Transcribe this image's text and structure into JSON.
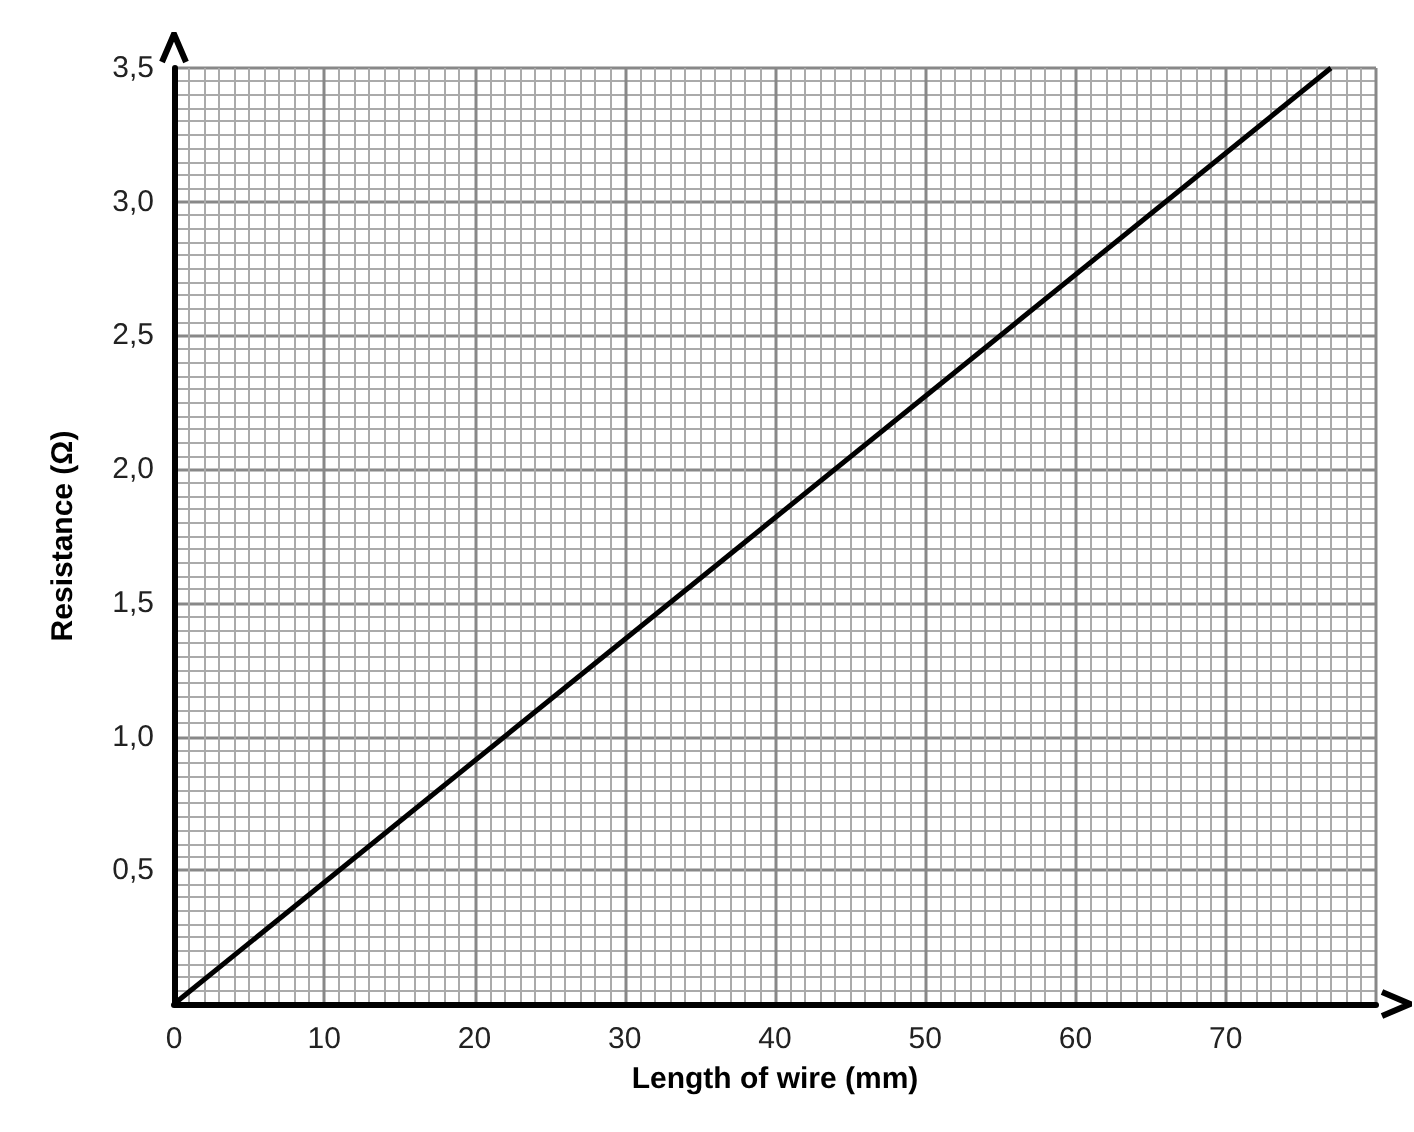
{
  "chart_data": {
    "type": "line",
    "xlabel": "Length of wire (mm)",
    "ylabel": "Resistance (Ω)",
    "series": [
      {
        "color": "#000000",
        "x": [
          0,
          77
        ],
        "values": [
          0,
          3.5
        ]
      }
    ],
    "xlim": [
      0,
      80
    ],
    "xticks": [
      0,
      10,
      20,
      30,
      40,
      50,
      60,
      70
    ],
    "ylim": [
      0,
      3.5
    ],
    "yticks": [
      {
        "value": 0.5,
        "label": "0,5"
      },
      {
        "value": 1,
        "label": "1,0"
      },
      {
        "value": 1.5,
        "label": "1,5"
      },
      {
        "value": 2,
        "label": "2,0"
      },
      {
        "value": 2.5,
        "label": "2,5"
      },
      {
        "value": 3,
        "label": "3,0"
      },
      {
        "value": 3.5,
        "label": "3,5"
      }
    ],
    "grid": true,
    "marker": "none",
    "line_style": "solid"
  }
}
